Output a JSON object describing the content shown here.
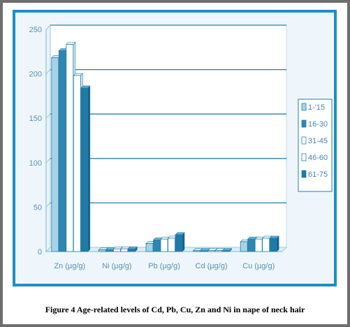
{
  "chart_data": {
    "type": "bar",
    "title": "",
    "xlabel": "",
    "ylabel": "",
    "ylim": [
      0,
      250
    ],
    "yticks": [
      0,
      50,
      100,
      150,
      200,
      250
    ],
    "grid": true,
    "legend_position": "right",
    "categories": [
      "Zn (µg/g)",
      "Ni (µg/g)",
      "Pb (µg/g)",
      "Cd (µg/g)",
      "Cu (µg/g)"
    ],
    "series": [
      {
        "name": "1-'15",
        "values": [
          218,
          2,
          9,
          1,
          11
        ]
      },
      {
        "name": "16-30",
        "values": [
          226,
          2,
          13,
          1,
          14
        ]
      },
      {
        "name": "31-45",
        "values": [
          233,
          3,
          14,
          1,
          14
        ]
      },
      {
        "name": "46-60",
        "values": [
          198,
          3,
          15,
          1,
          15
        ]
      },
      {
        "name": "61-75",
        "values": [
          184,
          3,
          19,
          1,
          15
        ]
      }
    ],
    "colors": {
      "series_fronts": [
        "#a6d3e8",
        "#2f86b0",
        "#ffffff",
        "#ffffff",
        "#1f7aa6"
      ],
      "series_tops": [
        "#cfe8f4",
        "#6fb3d3",
        "#f0f8fc",
        "#f0f8fc",
        "#5ea9cf"
      ],
      "series_sides": [
        "#6fb0cf",
        "#1c6a90",
        "#cfe6f2",
        "#cfe6f2",
        "#135e85"
      ],
      "bar_outline": "#2a7fa8",
      "gridline": "#2a7fa8",
      "plot_background": "#ffffff",
      "frame_border": "#1e8fc0"
    }
  },
  "caption": "Figure 4 Age-related levels of Cd, Pb, Cu, Zn and Ni in nape of neck hair"
}
